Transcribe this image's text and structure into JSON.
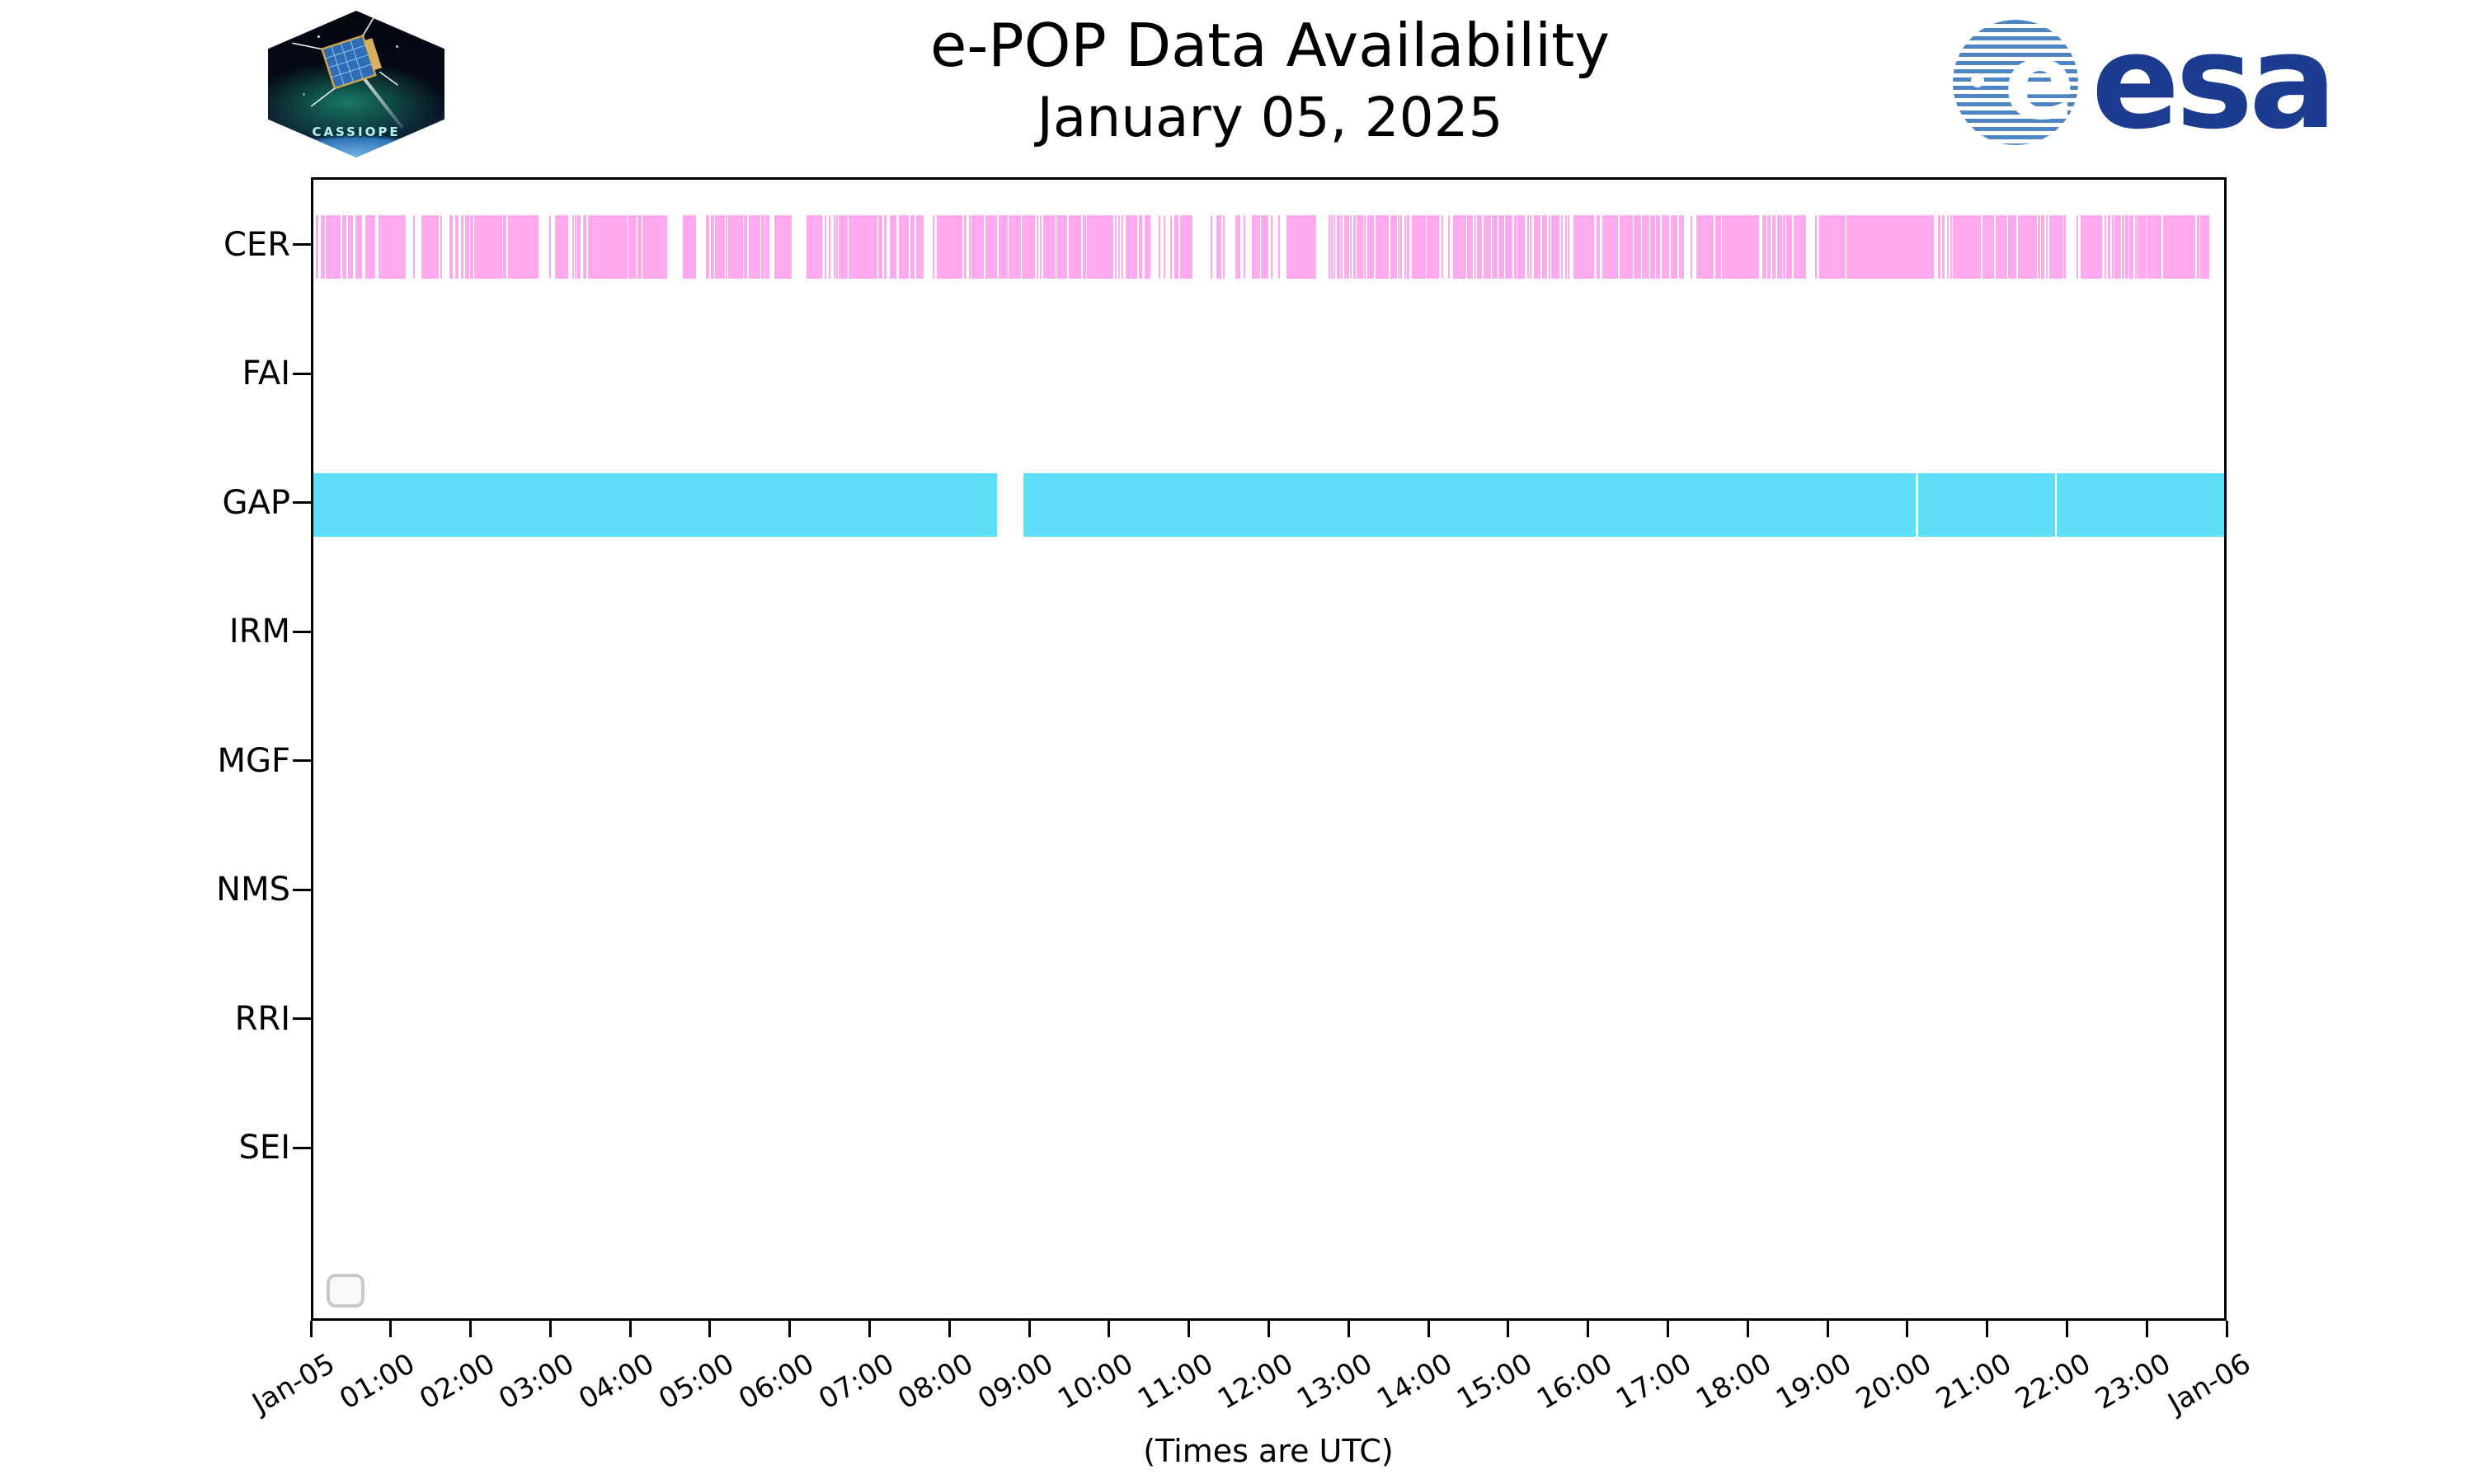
{
  "header": {
    "title": "e-POP Data Availability",
    "subtitle": "January 05, 2025",
    "cassiope_label": "CASSIOPE",
    "esa_letter": "e",
    "esa_word": "esa"
  },
  "colors": {
    "cer_pink": "#FFA9F1",
    "gap_cyan": "#5FDEF8",
    "axis_black": "#000000",
    "esa_blue": "#1C3D8F",
    "esa_stripe_blue": "#4D85C4",
    "legend_border_gray": "#C9C9C9"
  },
  "chart_data": {
    "type": "bar",
    "subtype": "broken-bar-availability-timeline",
    "title": "e-POP Data Availability",
    "subtitle": "January 05, 2025",
    "xlabel": "(Times are UTC)",
    "ylabel": "",
    "x_axis": {
      "unit": "hours UTC",
      "range_hours": [
        0,
        24
      ],
      "tick_labels": [
        "Jan-05",
        "01:00",
        "02:00",
        "03:00",
        "04:00",
        "05:00",
        "06:00",
        "07:00",
        "08:00",
        "09:00",
        "10:00",
        "11:00",
        "12:00",
        "13:00",
        "14:00",
        "15:00",
        "16:00",
        "17:00",
        "18:00",
        "19:00",
        "20:00",
        "21:00",
        "22:00",
        "23:00",
        "Jan-06"
      ]
    },
    "legend": {
      "visible": true,
      "entries": []
    },
    "grid": false,
    "rows": [
      {
        "label": "CER",
        "color": "#FFA9F1",
        "segments": [
          [
            0.03,
            0.06
          ],
          [
            0.09,
            0.15
          ],
          [
            0.16,
            0.34
          ],
          [
            0.36,
            0.41
          ],
          [
            0.43,
            0.5
          ],
          [
            0.53,
            0.61
          ],
          [
            0.65,
            0.78
          ],
          [
            0.82,
            1.16
          ],
          [
            1.25,
            1.27
          ],
          [
            1.36,
            1.57
          ],
          [
            1.59,
            1.61
          ],
          [
            1.71,
            1.75
          ],
          [
            1.78,
            1.82
          ],
          [
            1.85,
            1.89
          ],
          [
            1.91,
            1.96
          ],
          [
            1.97,
            2.01
          ],
          [
            2.02,
            2.37
          ],
          [
            2.38,
            2.42
          ],
          [
            2.44,
            2.83
          ],
          [
            2.96,
            2.98
          ],
          [
            3.03,
            3.2
          ],
          [
            3.25,
            3.26
          ],
          [
            3.28,
            3.29
          ],
          [
            3.31,
            3.36
          ],
          [
            3.39,
            3.43
          ],
          [
            3.45,
            3.61
          ],
          [
            3.62,
            3.95
          ],
          [
            3.96,
            3.97
          ],
          [
            3.98,
            4.06
          ],
          [
            4.07,
            4.12
          ],
          [
            4.13,
            4.44
          ],
          [
            4.64,
            4.81
          ],
          [
            4.93,
            4.97
          ],
          [
            4.99,
            5.03
          ],
          [
            5.04,
            5.17
          ],
          [
            5.18,
            5.2
          ],
          [
            5.21,
            5.4
          ],
          [
            5.41,
            5.45
          ],
          [
            5.47,
            5.61
          ],
          [
            5.62,
            5.67
          ],
          [
            5.68,
            5.73
          ],
          [
            5.79,
            6.01
          ],
          [
            6.19,
            6.39
          ],
          [
            6.42,
            6.43
          ],
          [
            6.47,
            6.49
          ],
          [
            6.54,
            6.56
          ],
          [
            6.57,
            6.59
          ],
          [
            6.6,
            6.71
          ],
          [
            6.72,
            7.08
          ],
          [
            7.1,
            7.15
          ],
          [
            7.17,
            7.2
          ],
          [
            7.24,
            7.32
          ],
          [
            7.35,
            7.48
          ],
          [
            7.5,
            7.55
          ],
          [
            7.57,
            7.67
          ],
          [
            7.78,
            7.8
          ],
          [
            7.83,
            8.15
          ],
          [
            8.17,
            8.2
          ],
          [
            8.23,
            8.25
          ],
          [
            8.27,
            8.42
          ],
          [
            8.44,
            8.59
          ],
          [
            8.61,
            8.72
          ],
          [
            8.73,
            8.89
          ],
          [
            8.9,
            9.06
          ],
          [
            9.08,
            9.11
          ],
          [
            9.13,
            9.15
          ],
          [
            9.17,
            9.32
          ],
          [
            9.33,
            9.47
          ],
          [
            9.49,
            9.64
          ],
          [
            9.66,
            9.71
          ],
          [
            9.72,
            10.05
          ],
          [
            10.07,
            10.08
          ],
          [
            10.11,
            10.12
          ],
          [
            10.15,
            10.17
          ],
          [
            10.2,
            10.35
          ],
          [
            10.37,
            10.41
          ],
          [
            10.44,
            10.51
          ],
          [
            10.62,
            10.64
          ],
          [
            10.68,
            10.7
          ],
          [
            10.76,
            10.78
          ],
          [
            10.81,
            10.87
          ],
          [
            10.89,
            11.04
          ],
          [
            11.27,
            11.28
          ],
          [
            11.34,
            11.4
          ],
          [
            11.42,
            11.44
          ],
          [
            11.58,
            11.64
          ],
          [
            11.68,
            11.69
          ],
          [
            11.79,
            11.89
          ],
          [
            11.9,
            12.0
          ],
          [
            12.03,
            12.05
          ],
          [
            12.12,
            12.13
          ],
          [
            12.22,
            12.57
          ],
          [
            12.58,
            12.6
          ],
          [
            12.75,
            12.76
          ],
          [
            12.78,
            12.79
          ],
          [
            12.81,
            12.82
          ],
          [
            12.85,
            12.86
          ],
          [
            12.88,
            12.89
          ],
          [
            12.91,
            12.92
          ],
          [
            12.95,
            13.01
          ],
          [
            13.02,
            13.04
          ],
          [
            13.06,
            13.09
          ],
          [
            13.1,
            13.19
          ],
          [
            13.2,
            13.22
          ],
          [
            13.24,
            13.32
          ],
          [
            13.34,
            13.51
          ],
          [
            13.53,
            13.61
          ],
          [
            13.62,
            13.64
          ],
          [
            13.65,
            13.67
          ],
          [
            13.7,
            13.72
          ],
          [
            13.74,
            13.77
          ],
          [
            13.8,
            13.97
          ],
          [
            13.98,
            14.14
          ],
          [
            14.17,
            14.18
          ],
          [
            14.25,
            14.27
          ],
          [
            14.31,
            14.48
          ],
          [
            14.49,
            14.56
          ],
          [
            14.58,
            14.59
          ],
          [
            14.62,
            14.68
          ],
          [
            14.7,
            14.79
          ],
          [
            14.8,
            14.87
          ],
          [
            14.88,
            14.96
          ],
          [
            14.97,
            15.06
          ],
          [
            15.08,
            15.11
          ],
          [
            15.12,
            15.22
          ],
          [
            15.25,
            15.26
          ],
          [
            15.28,
            15.29
          ],
          [
            15.33,
            15.41
          ],
          [
            15.43,
            15.5
          ],
          [
            15.52,
            15.54
          ],
          [
            15.55,
            15.65
          ],
          [
            15.67,
            15.69
          ],
          [
            15.72,
            15.74
          ],
          [
            15.76,
            15.78
          ],
          [
            15.83,
            16.09
          ],
          [
            16.12,
            16.16
          ],
          [
            16.19,
            16.39
          ],
          [
            16.41,
            16.57
          ],
          [
            16.58,
            16.68
          ],
          [
            16.69,
            16.78
          ],
          [
            16.79,
            16.85
          ],
          [
            16.86,
            16.92
          ],
          [
            16.94,
            17.03
          ],
          [
            17.05,
            17.13
          ],
          [
            17.15,
            17.22
          ],
          [
            17.3,
            17.31
          ],
          [
            17.37,
            17.59
          ],
          [
            17.61,
            17.68
          ],
          [
            17.69,
            18.16
          ],
          [
            18.2,
            18.25
          ],
          [
            18.26,
            18.3
          ],
          [
            18.32,
            18.36
          ],
          [
            18.39,
            18.45
          ],
          [
            18.46,
            18.49
          ],
          [
            18.5,
            18.57
          ],
          [
            18.59,
            18.75
          ],
          [
            18.86,
            18.88
          ],
          [
            18.91,
            19.25
          ],
          [
            19.26,
            20.35
          ],
          [
            20.41,
            20.44
          ],
          [
            20.46,
            20.49
          ],
          [
            20.52,
            20.53
          ],
          [
            20.56,
            20.58
          ],
          [
            20.59,
            20.94
          ],
          [
            20.97,
            21.11
          ],
          [
            21.13,
            21.28
          ],
          [
            21.29,
            21.39
          ],
          [
            21.41,
            21.65
          ],
          [
            21.66,
            21.69
          ],
          [
            21.7,
            21.74
          ],
          [
            21.76,
            21.78
          ],
          [
            21.8,
            21.97
          ],
          [
            21.98,
            22.01
          ],
          [
            22.15,
            22.16
          ],
          [
            22.2,
            22.47
          ],
          [
            22.5,
            22.51
          ],
          [
            22.54,
            22.57
          ],
          [
            22.59,
            22.61
          ],
          [
            22.62,
            22.71
          ],
          [
            22.72,
            22.75
          ],
          [
            22.76,
            22.8
          ],
          [
            22.81,
            22.86
          ],
          [
            22.88,
            22.9
          ],
          [
            22.91,
            23.03
          ],
          [
            23.04,
            23.21
          ],
          [
            23.23,
            23.64
          ],
          [
            23.66,
            23.69
          ],
          [
            23.7,
            23.81
          ]
        ]
      },
      {
        "label": "FAI",
        "color": "#FFA9F1",
        "segments": []
      },
      {
        "label": "GAP",
        "color": "#5FDEF8",
        "segments": [
          [
            0.0,
            8.59
          ],
          [
            8.92,
            20.13
          ],
          [
            20.16,
            21.88
          ],
          [
            21.9,
            24.0
          ]
        ]
      },
      {
        "label": "IRM",
        "color": "#5FDEF8",
        "segments": []
      },
      {
        "label": "MGF",
        "color": "#FFA9F1",
        "segments": []
      },
      {
        "label": "NMS",
        "color": "#5FDEF8",
        "segments": []
      },
      {
        "label": "RRI",
        "color": "#FFA9F1",
        "segments": []
      },
      {
        "label": "SEI",
        "color": "#5FDEF8",
        "segments": []
      }
    ]
  }
}
